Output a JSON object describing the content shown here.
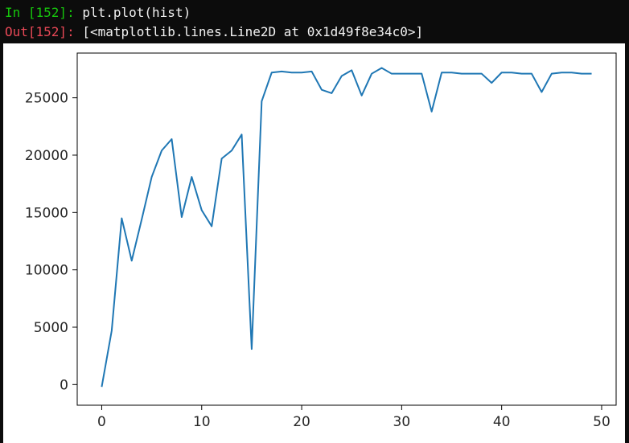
{
  "console": {
    "in_prompt": "In [152]:",
    "in_code": "plt.plot(hist)",
    "out_prompt": "Out[152]:",
    "out_text": "[<matplotlib.lines.Line2D at 0x1d49f8e34c0>]",
    "colors": {
      "background": "#0c0c0c",
      "in_prompt": "#16c60c",
      "out_prompt": "#e74856",
      "text": "#f2f2f2"
    }
  },
  "chart_data": {
    "type": "line",
    "title": "",
    "xlabel": "",
    "ylabel": "",
    "xlim": [
      -2.45,
      51.45
    ],
    "ylim": [
      -1800,
      28900
    ],
    "x_ticks": [
      0,
      10,
      20,
      30,
      40,
      50
    ],
    "y_ticks": [
      0,
      5000,
      10000,
      15000,
      20000,
      25000
    ],
    "x_tick_labels": [
      "0",
      "10",
      "20",
      "30",
      "40",
      "50"
    ],
    "y_tick_labels": [
      "0",
      "5000",
      "10000",
      "15000",
      "20000",
      "25000"
    ],
    "grid": false,
    "line_color": "#1f77b4",
    "series": [
      {
        "values": [
          -200,
          4700,
          14500,
          10800,
          14400,
          18100,
          20400,
          21400,
          14600,
          18100,
          15200,
          13800,
          19700,
          20400,
          21800,
          3100,
          24700,
          27200,
          27300,
          27200,
          27200,
          27300,
          25700,
          25400,
          26900,
          27400,
          25200,
          27100,
          27600,
          27100,
          27100,
          27100,
          27100,
          23800,
          27200,
          27200,
          27100,
          27100,
          27100,
          26300,
          27200,
          27200,
          27100,
          27100,
          25500,
          27100,
          27200,
          27200,
          27100,
          27100
        ]
      }
    ]
  }
}
